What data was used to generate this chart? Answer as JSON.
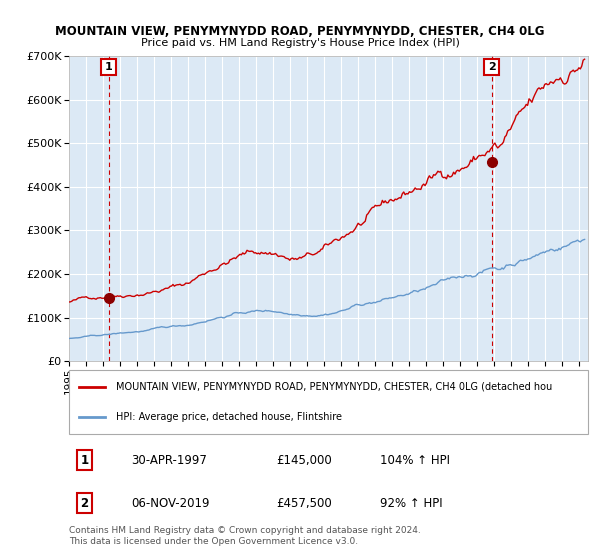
{
  "title1": "MOUNTAIN VIEW, PENYMYNYDD ROAD, PENYMYNYDD, CHESTER, CH4 0LG",
  "title2": "Price paid vs. HM Land Registry's House Price Index (HPI)",
  "bg_color": "#dce9f5",
  "grid_color": "#ffffff",
  "red_color": "#cc0000",
  "blue_color": "#6699cc",
  "ylim": [
    0,
    700000
  ],
  "yticks": [
    0,
    100000,
    200000,
    300000,
    400000,
    500000,
    600000,
    700000
  ],
  "ytick_labels": [
    "£0",
    "£100K",
    "£200K",
    "£300K",
    "£400K",
    "£500K",
    "£600K",
    "£700K"
  ],
  "sale1_date": 1997.33,
  "sale1_price": 145000,
  "sale1_label": "1",
  "sale2_date": 2019.84,
  "sale2_price": 457500,
  "sale2_label": "2",
  "legend_red": "MOUNTAIN VIEW, PENYMYNYDD ROAD, PENYMYNYDD, CHESTER, CH4 0LG (detached hou",
  "legend_blue": "HPI: Average price, detached house, Flintshire",
  "table_row1": [
    "1",
    "30-APR-1997",
    "£145,000",
    "104% ↑ HPI"
  ],
  "table_row2": [
    "2",
    "06-NOV-2019",
    "£457,500",
    "92% ↑ HPI"
  ],
  "footer": "Contains HM Land Registry data © Crown copyright and database right 2024.\nThis data is licensed under the Open Government Licence v3.0.",
  "xmin": 1995.0,
  "xmax": 2025.5,
  "marker_color": "#8b0000"
}
